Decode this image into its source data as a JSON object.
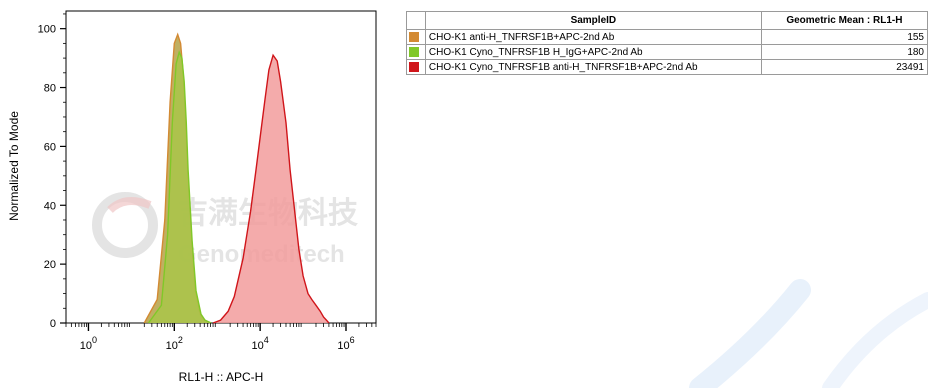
{
  "chart_data": {
    "type": "area",
    "xlabel": "RL1-H :: APC-H",
    "ylabel": "Normalized To Mode",
    "xscale": "log",
    "xlim": [
      0.3,
      5000000
    ],
    "ylim": [
      0,
      106
    ],
    "x_ticks": [
      {
        "base": "10",
        "exp": "0"
      },
      {
        "base": "10",
        "exp": "2"
      },
      {
        "base": "10",
        "exp": "4"
      },
      {
        "base": "10",
        "exp": "6"
      }
    ],
    "y_ticks": [
      "0",
      "20",
      "40",
      "60",
      "80",
      "100"
    ],
    "x_tick_values": [
      1,
      100,
      10000,
      1000000
    ],
    "y_tick_values": [
      0,
      20,
      40,
      60,
      80,
      100
    ],
    "series": [
      {
        "color": "#d38a33",
        "fill": "#b5a145",
        "x": [
          20,
          40,
          60,
          80,
          100,
          120,
          140,
          160,
          180,
          200,
          250,
          300,
          400,
          500,
          700
        ],
        "y": [
          0,
          8,
          35,
          75,
          95,
          98,
          95,
          85,
          70,
          55,
          30,
          12,
          3,
          1,
          0
        ]
      },
      {
        "color": "#80c828",
        "fill": "#a9c54a",
        "x": [
          25,
          50,
          70,
          90,
          110,
          130,
          150,
          170,
          190,
          210,
          260,
          320,
          420,
          520,
          720
        ],
        "y": [
          0,
          6,
          30,
          68,
          88,
          92,
          90,
          82,
          68,
          52,
          28,
          11,
          3,
          1,
          0
        ]
      },
      {
        "color": "#d0151a",
        "fill": "#f29c9c",
        "x": [
          800,
          1200,
          1800,
          2500,
          4000,
          6000,
          8000,
          10000,
          13000,
          16000,
          20000,
          25000,
          30000,
          40000,
          50000,
          65000,
          80000,
          100000,
          130000,
          160000,
          200000,
          250000,
          300000,
          350000,
          400000
        ],
        "y": [
          0,
          1,
          4,
          9,
          22,
          38,
          52,
          63,
          76,
          86,
          91,
          89,
          82,
          68,
          52,
          37,
          25,
          16,
          10,
          8,
          6,
          4,
          2,
          1,
          0
        ]
      }
    ]
  },
  "legend_table": {
    "header": {
      "sample_id": "SampleID",
      "geo_mean": "Geometric Mean : RL1-H"
    },
    "rows": [
      {
        "color": "#d38a33",
        "sample": "CHO-K1 anti-H_TNFRSF1B+APC-2nd Ab",
        "value": "155"
      },
      {
        "color": "#80c828",
        "sample": "CHO-K1 Cyno_TNFRSF1B H_IgG+APC-2nd Ab",
        "value": "180"
      },
      {
        "color": "#d0151a",
        "sample": "CHO-K1 Cyno_TNFRSF1B anti-H_TNFRSF1B+APC-2nd Ab",
        "value": "23491"
      }
    ]
  },
  "watermark": {
    "chinese": "吉满生物科技",
    "english": "Genomeditech"
  }
}
